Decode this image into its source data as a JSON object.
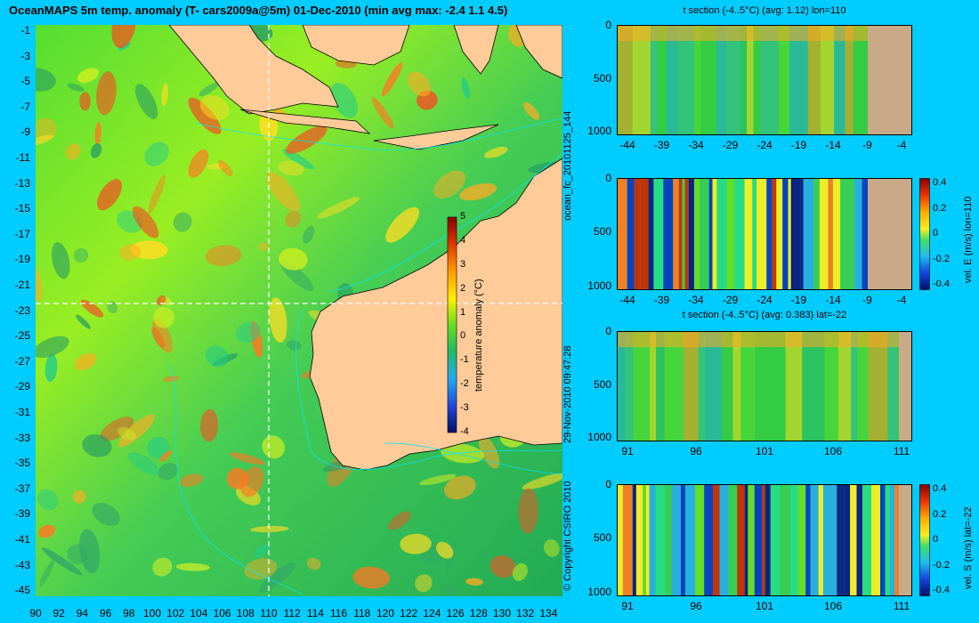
{
  "map": {
    "title": "OceanMAPS 5m temp. anomaly (T- cars2009a@5m) 01-Dec-2010 (min avg max: -2.4 1.1 4.5)",
    "lat_labels": [
      "-1",
      "-3",
      "-5",
      "-7",
      "-9",
      "-11",
      "-13",
      "-15",
      "-17",
      "-19",
      "-21",
      "-23",
      "-25",
      "-27",
      "-29",
      "-31",
      "-33",
      "-35",
      "-37",
      "-39",
      "-41",
      "-43",
      "-45"
    ],
    "lon_labels": [
      "90",
      "92",
      "94",
      "96",
      "98",
      "100",
      "102",
      "104",
      "106",
      "108",
      "110",
      "112",
      "114",
      "116",
      "118",
      "120",
      "122",
      "124",
      "126",
      "128",
      "130",
      "132",
      "134"
    ],
    "section_lat": -22,
    "section_lon": 110,
    "colorbar": {
      "label": "temperature anomaly (°C)",
      "ticks": [
        "5",
        "4",
        "3",
        "2",
        "1",
        "0",
        "-1",
        "-2",
        "-3",
        "-4"
      ]
    },
    "land_color": "#ffcc99"
  },
  "side_texts": {
    "forecast_id": "ocean_fc_20101125_144",
    "run_time": "29-Nov-2010 09:47:28",
    "copyright": "© Copyright CSIRO 2010"
  },
  "panels": [
    {
      "title": "t section (-4..5°C) (avg: 1.12) lon=110",
      "depth_ticks": [
        "0",
        "500",
        "1000"
      ],
      "x_ticks": [
        "-44",
        "-39",
        "-34",
        "-29",
        "-24",
        "-19",
        "-14",
        "-9",
        "-4"
      ],
      "colorbar": null
    },
    {
      "title": "",
      "depth_ticks": [
        "0",
        "500",
        "1000"
      ],
      "x_ticks": [
        "-44",
        "-39",
        "-34",
        "-29",
        "-24",
        "-19",
        "-14",
        "-9",
        "-4"
      ],
      "colorbar": {
        "label": "vel. E (m/s) lon=110",
        "ticks": [
          "0.4",
          "0.2",
          "0",
          "-0.2",
          "-0.4"
        ]
      }
    },
    {
      "title": "t section (-4..5°C) (avg: 0.383) lat=-22",
      "depth_ticks": [
        "0",
        "500",
        "1000"
      ],
      "x_ticks": [
        "91",
        "96",
        "101",
        "106",
        "111"
      ],
      "colorbar": null
    },
    {
      "title": "",
      "depth_ticks": [
        "0",
        "500",
        "1000"
      ],
      "x_ticks": [
        "91",
        "96",
        "101",
        "106",
        "111"
      ],
      "colorbar": {
        "label": "vel. S (m/s) lat=-22",
        "ticks": [
          "0.4",
          "0.2",
          "0",
          "-0.2",
          "-0.4"
        ]
      }
    }
  ]
}
